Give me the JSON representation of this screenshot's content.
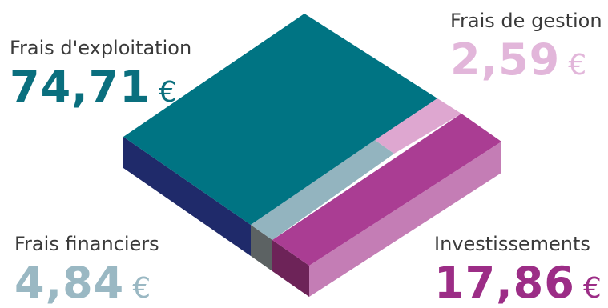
{
  "chart_data": {
    "type": "pie",
    "style": "isometric-block",
    "currency": "€",
    "segments": [
      {
        "name": "Frais d'exploitation",
        "value": 74.71,
        "display": "74,71",
        "color": "#007483",
        "side_color": "#1f2a6a"
      },
      {
        "name": "Frais de gestion",
        "value": 2.59,
        "display": "2,59",
        "color": "#dea7d0",
        "side_color": "#d9a2cd"
      },
      {
        "name": "Frais financiers",
        "value": 4.84,
        "display": "4,84",
        "color": "#93b4bf",
        "side_color": "#5c6263"
      },
      {
        "name": "Investissements",
        "value": 17.86,
        "display": "17,86",
        "color": "#aa3d93",
        "side_color": "#c47db5"
      }
    ]
  }
}
